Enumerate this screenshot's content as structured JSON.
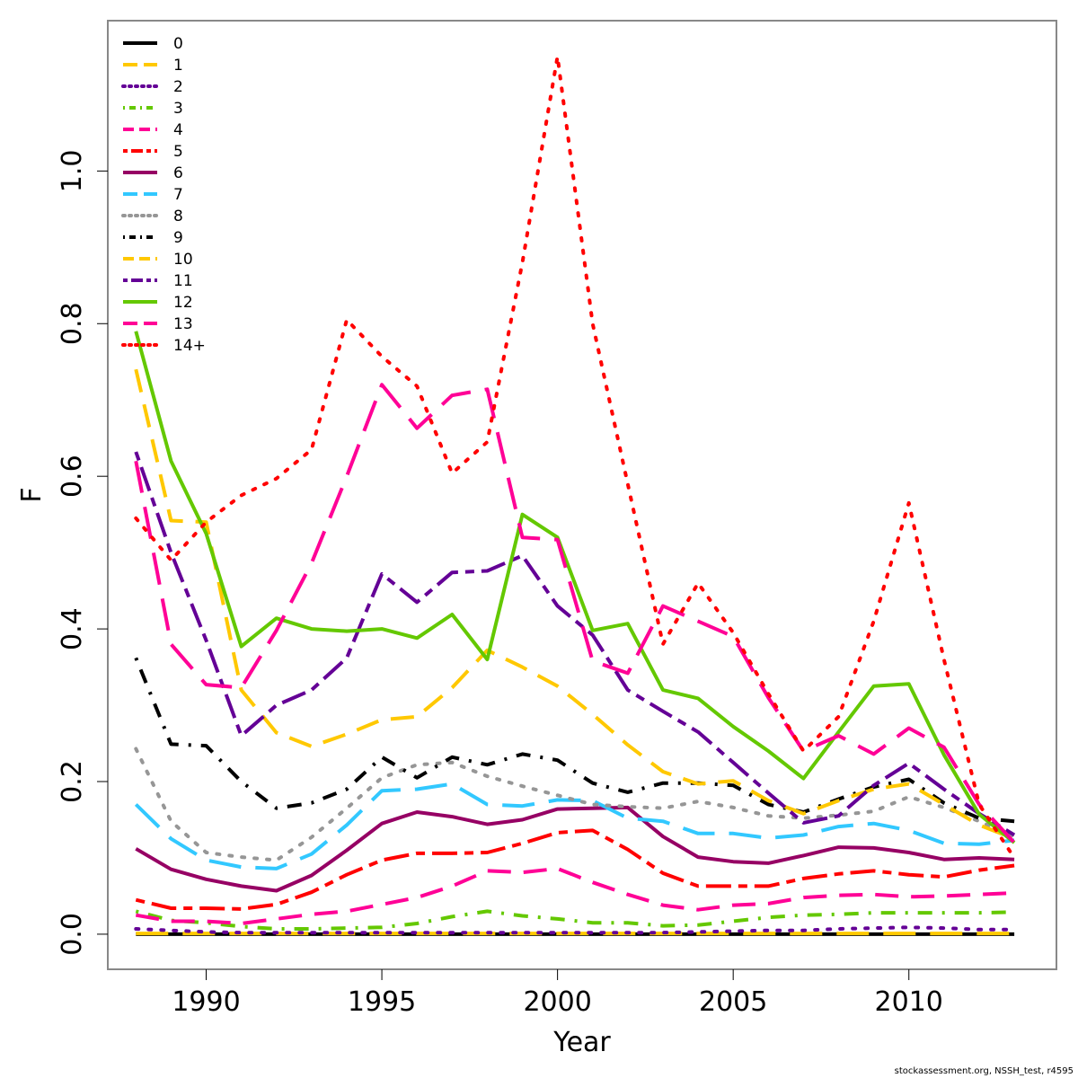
{
  "chart_data": {
    "type": "line",
    "title": "",
    "xlabel": "Year",
    "ylabel": "F",
    "xlim": [
      1987.2,
      2014.2
    ],
    "ylim": [
      -0.046,
      1.197
    ],
    "grid": false,
    "legend_position": "top-left",
    "x_ticks": [
      1990,
      1995,
      2000,
      2005,
      2010
    ],
    "x_tick_labels": [
      "1990",
      "1995",
      "2000",
      "2005",
      "2010"
    ],
    "y_ticks": [
      0.0,
      0.2,
      0.4,
      0.6,
      0.8,
      1.0
    ],
    "y_tick_labels": [
      "0.0",
      "0.2",
      "0.4",
      "0.6",
      "0.8",
      "1.0"
    ],
    "x": [
      1988,
      1989,
      1990,
      1991,
      1992,
      1993,
      1994,
      1995,
      1996,
      1997,
      1998,
      1999,
      2000,
      2001,
      2002,
      2003,
      2004,
      2005,
      2006,
      2007,
      2008,
      2009,
      2010,
      2011,
      2012,
      2013
    ],
    "series": [
      {
        "name": "0",
        "color": "#000000",
        "dash": "solid",
        "values": [
          0,
          0,
          0,
          0,
          0,
          0,
          0,
          0,
          0,
          0,
          0,
          0,
          0,
          0,
          0,
          0,
          0,
          0,
          0,
          0,
          0,
          0,
          0,
          0,
          0,
          0
        ]
      },
      {
        "name": "1",
        "color": "#FFC800",
        "dash": "longdash",
        "values": [
          0.001,
          0.001,
          0.001,
          0.001,
          0.001,
          0.001,
          0.001,
          0.001,
          0.001,
          0.001,
          0.001,
          0.001,
          0.001,
          0.001,
          0.001,
          0.001,
          0.001,
          0.001,
          0.001,
          0.001,
          0.001,
          0.001,
          0.001,
          0.001,
          0.001,
          0.001
        ]
      },
      {
        "name": "2",
        "color": "#640096",
        "dash": "dotted",
        "values": [
          0.007,
          0.005,
          0.003,
          0.002,
          0.002,
          0.002,
          0.002,
          0.002,
          0.002,
          0.002,
          0.002,
          0.002,
          0.002,
          0.002,
          0.002,
          0.002,
          0.003,
          0.004,
          0.005,
          0.005,
          0.007,
          0.008,
          0.009,
          0.008,
          0.006,
          0.006
        ]
      },
      {
        "name": "3",
        "color": "#64C800",
        "dash": "dotdash",
        "values": [
          0.03,
          0.018,
          0.015,
          0.01,
          0.007,
          0.007,
          0.008,
          0.009,
          0.014,
          0.023,
          0.03,
          0.024,
          0.02,
          0.015,
          0.015,
          0.011,
          0.012,
          0.017,
          0.022,
          0.025,
          0.026,
          0.028,
          0.028,
          0.028,
          0.028,
          0.029
        ]
      },
      {
        "name": "4",
        "color": "#FF0096",
        "dash": "dashed",
        "values": [
          0.025,
          0.017,
          0.017,
          0.014,
          0.02,
          0.026,
          0.03,
          0.039,
          0.048,
          0.063,
          0.083,
          0.081,
          0.086,
          0.068,
          0.052,
          0.038,
          0.032,
          0.038,
          0.04,
          0.048,
          0.051,
          0.052,
          0.049,
          0.05,
          0.052,
          0.054
        ]
      },
      {
        "name": "5",
        "color": "#FF0000",
        "dash": "twodash",
        "values": [
          0.045,
          0.034,
          0.034,
          0.033,
          0.039,
          0.055,
          0.078,
          0.097,
          0.106,
          0.106,
          0.107,
          0.119,
          0.133,
          0.136,
          0.111,
          0.08,
          0.063,
          0.063,
          0.063,
          0.073,
          0.079,
          0.083,
          0.078,
          0.075,
          0.084,
          0.09
        ]
      },
      {
        "name": "6",
        "color": "#960064",
        "dash": "solid",
        "values": [
          0.112,
          0.085,
          0.072,
          0.063,
          0.057,
          0.077,
          0.11,
          0.145,
          0.16,
          0.154,
          0.144,
          0.15,
          0.164,
          0.165,
          0.166,
          0.128,
          0.101,
          0.095,
          0.093,
          0.103,
          0.114,
          0.113,
          0.107,
          0.098,
          0.1,
          0.098
        ]
      },
      {
        "name": "7",
        "color": "#32C8FF",
        "dash": "longdash",
        "values": [
          0.17,
          0.125,
          0.097,
          0.088,
          0.086,
          0.105,
          0.143,
          0.188,
          0.19,
          0.197,
          0.17,
          0.168,
          0.176,
          0.175,
          0.152,
          0.148,
          0.132,
          0.132,
          0.126,
          0.13,
          0.141,
          0.145,
          0.136,
          0.119,
          0.118,
          0.123
        ]
      },
      {
        "name": "8",
        "color": "#969696",
        "dash": "dotted",
        "values": [
          0.243,
          0.148,
          0.107,
          0.101,
          0.097,
          0.127,
          0.165,
          0.205,
          0.222,
          0.225,
          0.207,
          0.194,
          0.182,
          0.17,
          0.167,
          0.165,
          0.174,
          0.166,
          0.155,
          0.152,
          0.156,
          0.161,
          0.18,
          0.166,
          0.148,
          0.128
        ]
      },
      {
        "name": "9",
        "color": "#000000",
        "dash": "dotdash",
        "values": [
          0.362,
          0.249,
          0.247,
          0.2,
          0.165,
          0.172,
          0.19,
          0.232,
          0.205,
          0.232,
          0.222,
          0.236,
          0.228,
          0.198,
          0.186,
          0.198,
          0.198,
          0.195,
          0.17,
          0.16,
          0.177,
          0.193,
          0.203,
          0.172,
          0.152,
          0.148
        ]
      },
      {
        "name": "10",
        "color": "#FFC800",
        "dash": "dashed",
        "values": [
          0.74,
          0.542,
          0.54,
          0.32,
          0.264,
          0.246,
          0.262,
          0.281,
          0.285,
          0.323,
          0.372,
          0.35,
          0.325,
          0.288,
          0.248,
          0.213,
          0.197,
          0.201,
          0.175,
          0.158,
          0.175,
          0.19,
          0.197,
          0.17,
          0.143,
          0.125
        ]
      },
      {
        "name": "11",
        "color": "#640096",
        "dash": "twodash",
        "values": [
          0.632,
          0.5,
          0.385,
          0.26,
          0.3,
          0.32,
          0.362,
          0.472,
          0.435,
          0.474,
          0.476,
          0.496,
          0.43,
          0.392,
          0.32,
          0.292,
          0.265,
          0.225,
          0.185,
          0.146,
          0.155,
          0.195,
          0.224,
          0.19,
          0.158,
          0.13
        ]
      },
      {
        "name": "12",
        "color": "#64C800",
        "dash": "solid",
        "values": [
          0.79,
          0.62,
          0.525,
          0.377,
          0.414,
          0.4,
          0.397,
          0.4,
          0.388,
          0.419,
          0.36,
          0.55,
          0.52,
          0.398,
          0.407,
          0.32,
          0.309,
          0.272,
          0.24,
          0.204,
          0.265,
          0.325,
          0.328,
          0.235,
          0.157,
          0.12
        ]
      },
      {
        "name": "13",
        "color": "#FF0096",
        "dash": "longdash",
        "values": [
          0.62,
          0.38,
          0.327,
          0.323,
          0.398,
          0.486,
          0.6,
          0.72,
          0.663,
          0.706,
          0.714,
          0.52,
          0.517,
          0.358,
          0.342,
          0.43,
          0.41,
          0.39,
          0.31,
          0.24,
          0.26,
          0.236,
          0.27,
          0.245,
          0.17,
          0.12
        ]
      },
      {
        "name": "14+",
        "color": "#FF0000",
        "dash": "dotted",
        "values": [
          0.545,
          0.49,
          0.54,
          0.575,
          0.597,
          0.635,
          0.805,
          0.757,
          0.718,
          0.604,
          0.645,
          0.88,
          1.15,
          0.8,
          0.59,
          0.38,
          0.46,
          0.395,
          0.315,
          0.24,
          0.285,
          0.41,
          0.565,
          0.36,
          0.17,
          0.1
        ]
      }
    ]
  },
  "footer_text": "stockassessment.org, NSSH_test, r4595"
}
